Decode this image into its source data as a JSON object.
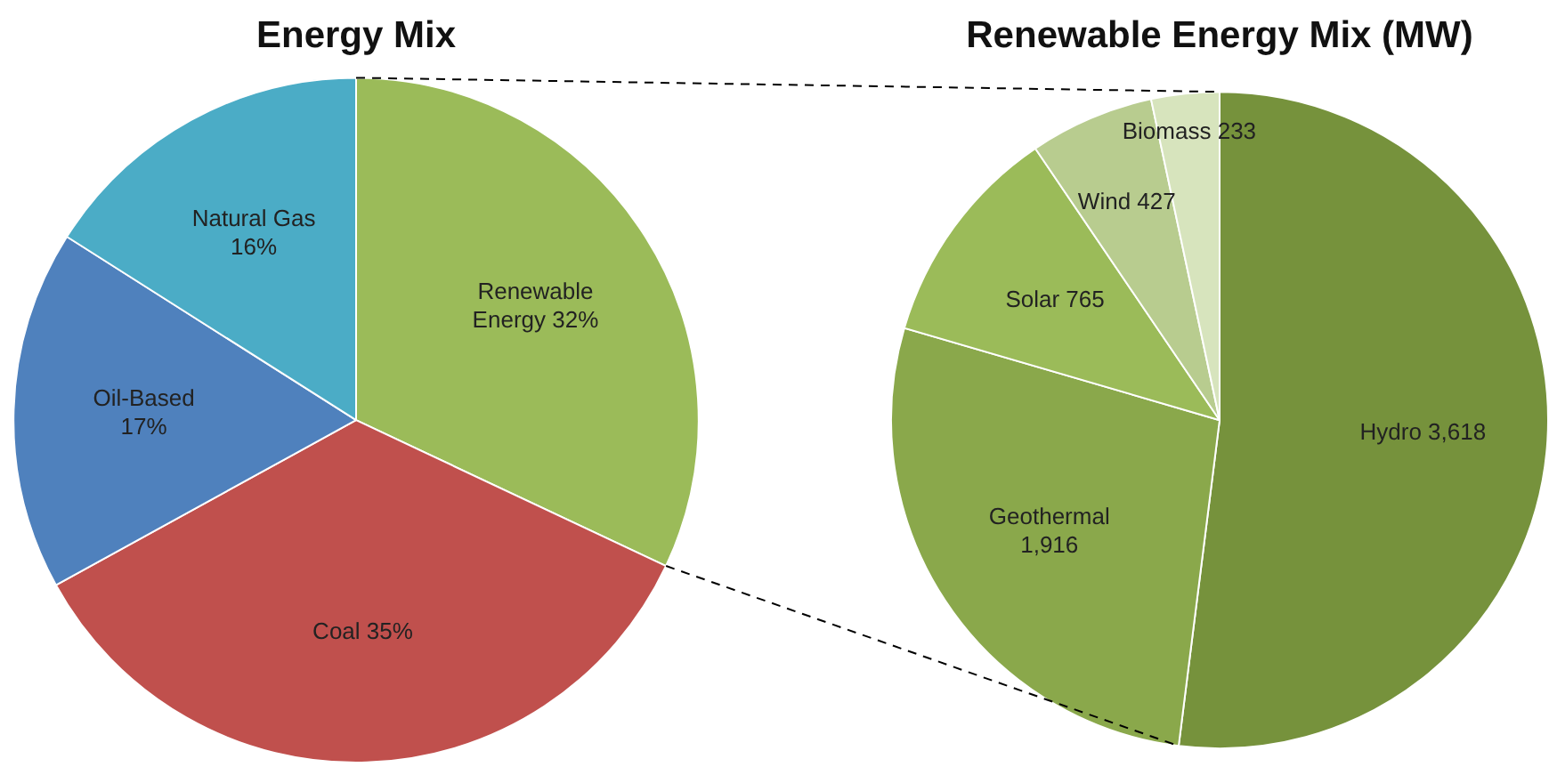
{
  "chart_data": [
    {
      "type": "pie",
      "title": "Energy Mix",
      "categories": [
        "Renewable Energy",
        "Coal",
        "Oil-Based",
        "Natural Gas"
      ],
      "values": [
        32,
        35,
        17,
        16
      ],
      "value_labels": [
        "32%",
        "35%",
        "17%",
        "16%"
      ],
      "colors": [
        "#9bbb59",
        "#c0504d",
        "#4f81bd",
        "#4bacc6"
      ],
      "legend": false
    },
    {
      "type": "pie",
      "title": "Renewable Energy Mix (MW)",
      "categories": [
        "Hydro",
        "Geothermal",
        "Solar",
        "Wind",
        "Biomass"
      ],
      "values": [
        3618,
        1916,
        765,
        427,
        233
      ],
      "value_labels": [
        "3,618",
        "1,916",
        "765",
        "427",
        "233"
      ],
      "colors": [
        "#76923c",
        "#8aa84b",
        "#9bbb59",
        "#b8cc8f",
        "#d7e4bd"
      ],
      "legend": false
    }
  ]
}
